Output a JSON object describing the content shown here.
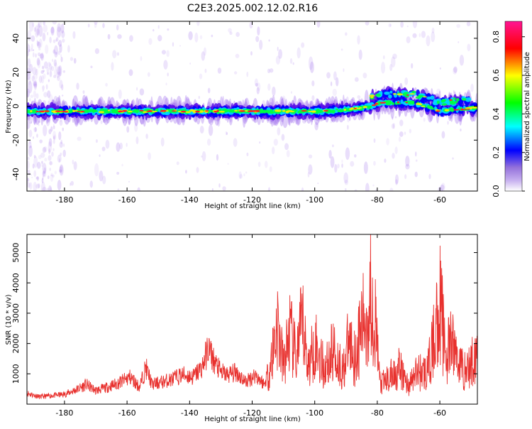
{
  "title": "C2E3.2025.002.12.02.R16",
  "chart_data": [
    {
      "type": "heatmap",
      "xlabel": "Height of straight line (km)",
      "ylabel": "Frequency (Hz)",
      "xlim": [
        -192,
        -48
      ],
      "ylim": [
        -50,
        50
      ],
      "xticks": [
        -180,
        -160,
        -140,
        -120,
        -100,
        -80,
        -60
      ],
      "yticks": [
        -40,
        -20,
        0,
        20,
        40
      ],
      "colorbar": {
        "label": "Normalized spectral amplitude",
        "range": [
          0.0,
          0.88
        ],
        "ticks": [
          0.0,
          0.2,
          0.4,
          0.6,
          0.8
        ],
        "colormap": [
          "#ffffff",
          "#9370db",
          "#0000ff",
          "#00ffff",
          "#00ff00",
          "#ffff00",
          "#ff0000",
          "#ff1493"
        ]
      },
      "band_center_hz": [
        {
          "x": -192,
          "y": -3
        },
        {
          "x": -170,
          "y": -3
        },
        {
          "x": -150,
          "y": -3
        },
        {
          "x": -130,
          "y": -3
        },
        {
          "x": -110,
          "y": -3
        },
        {
          "x": -95,
          "y": -3
        },
        {
          "x": -85,
          "y": -1
        },
        {
          "x": -78,
          "y": 2
        },
        {
          "x": -72,
          "y": 2
        },
        {
          "x": -68,
          "y": 2
        },
        {
          "x": -60,
          "y": -3
        },
        {
          "x": -55,
          "y": -2
        },
        {
          "x": -48,
          "y": -1
        }
      ]
    },
    {
      "type": "line",
      "xlabel": "Height of straight line (km)",
      "ylabel": "SNR (10 * v/v)",
      "xlim": [
        -192,
        -48
      ],
      "ylim": [
        0,
        5600
      ],
      "xticks": [
        -180,
        -160,
        -140,
        -120,
        -100,
        -80,
        -60
      ],
      "yticks": [
        1000,
        2000,
        3000,
        4000,
        5000
      ],
      "series": [
        {
          "color": "#e8312e",
          "x": [
            -192,
            -188,
            -184,
            -180,
            -176,
            -173,
            -170,
            -166,
            -162,
            -159,
            -156,
            -154,
            -152,
            -149,
            -146,
            -142,
            -139,
            -136,
            -134,
            -132,
            -130,
            -128,
            -125,
            -122,
            -119,
            -116,
            -114,
            -112,
            -110,
            -108,
            -106,
            -104,
            -102,
            -100,
            -97,
            -94,
            -91,
            -89,
            -87,
            -85,
            -83,
            -82,
            -81,
            -79,
            -76,
            -73,
            -70,
            -67,
            -64,
            -62,
            -60,
            -58,
            -56,
            -54,
            -52,
            -50,
            -48
          ],
          "y": [
            450,
            300,
            350,
            400,
            600,
            800,
            550,
            700,
            900,
            1100,
            700,
            1500,
            800,
            900,
            1000,
            1200,
            1100,
            1500,
            2300,
            1700,
            1300,
            1200,
            1300,
            900,
            1200,
            800,
            2000,
            3900,
            1800,
            3500,
            2200,
            3900,
            1800,
            3000,
            1700,
            2600,
            1600,
            3100,
            2200,
            3800,
            4200,
            5500,
            4500,
            900,
            1300,
            1700,
            900,
            1600,
            1500,
            3000,
            5000,
            2300,
            3000,
            2100,
            1600,
            1900,
            2700
          ]
        }
      ]
    }
  ]
}
